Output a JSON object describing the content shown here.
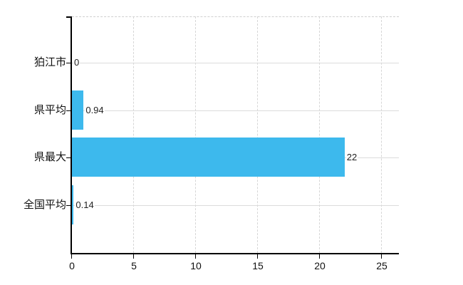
{
  "chart_data": {
    "type": "bar",
    "orientation": "horizontal",
    "title": "",
    "xlabel": "",
    "ylabel": "",
    "categories": [
      "狛江市",
      "県平均",
      "県最大",
      "全国平均"
    ],
    "values": [
      0,
      0.94,
      22,
      0.14
    ],
    "value_labels": [
      "0",
      "0.94",
      "22",
      "0.14"
    ],
    "x_tick_labels": [
      "0",
      "5",
      "10",
      "15",
      "20",
      "25"
    ],
    "x_tick_values": [
      0,
      5,
      10,
      15,
      20,
      25
    ],
    "xlim": [
      0,
      26.4
    ],
    "grid": true,
    "legend_position": "none",
    "bar_color": "#3db9ed",
    "h_grid_color": "#dcdcdc",
    "v_grid_color": "#d6d6d6",
    "axis_color": "#000000",
    "text_color": "#111111"
  }
}
